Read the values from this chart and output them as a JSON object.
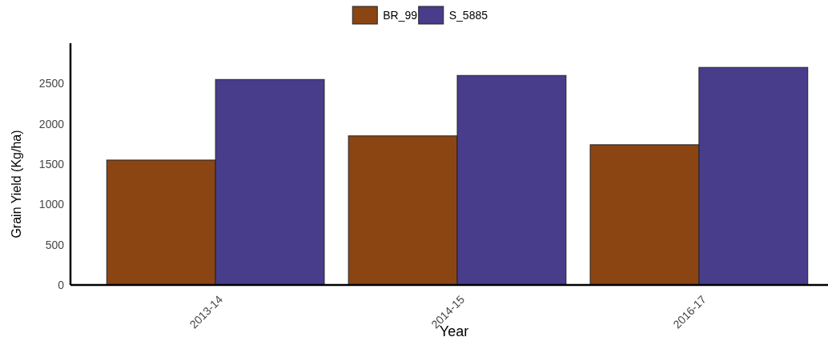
{
  "chart_data": {
    "type": "bar",
    "xlabel": "Year",
    "ylabel": "Grain Yield (Kg/ha)",
    "categories": [
      "2013-14",
      "2014-15",
      "2016-17"
    ],
    "series": [
      {
        "name": "BR_99",
        "color": "#8b4513",
        "values": [
          1550,
          1850,
          1740
        ]
      },
      {
        "name": "S_5885",
        "color": "#483d8b",
        "values": [
          2550,
          2600,
          2700
        ]
      }
    ],
    "ylim": [
      0,
      3000
    ],
    "yticks": [
      0,
      500,
      1000,
      1500,
      2000,
      2500
    ],
    "legend": "top",
    "grid": false
  }
}
